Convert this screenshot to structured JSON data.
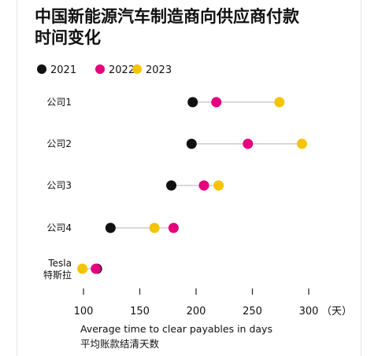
{
  "title": [
    "中国新能源汽车制造商向供应商付款",
    "时间变化"
  ],
  "colors": {
    "2021": "#111111",
    "2022": "#e5007d",
    "2023": "#f5c400",
    "connector": "#d9d9d9",
    "axis": "#333333"
  },
  "chart_data": {
    "type": "dot-plot",
    "title": "中国新能源汽车制造商向供应商付款时间变化",
    "legend": [
      "2021",
      "2022",
      "2023"
    ],
    "legend_placement": "top-left",
    "categories": [
      {
        "label": [
          "公司1"
        ],
        "values": {
          "2021": 197,
          "2022": 218,
          "2023": 274
        }
      },
      {
        "label": [
          "公司2"
        ],
        "values": {
          "2021": 196,
          "2022": 246,
          "2023": 294
        }
      },
      {
        "label": [
          "公司3"
        ],
        "values": {
          "2021": 178,
          "2022": 207,
          "2023": 220
        }
      },
      {
        "label": [
          "公司4"
        ],
        "values": {
          "2021": 124,
          "2022": 180,
          "2023": 163
        }
      },
      {
        "label": [
          "Tesla",
          "特斯拉"
        ],
        "values": {
          "2021": 112,
          "2022": 111,
          "2023": 99
        }
      }
    ],
    "x_ticks": [
      "100",
      "150",
      "200",
      "250",
      "300"
    ],
    "x_unit": "（天）",
    "xlim": [
      100,
      300
    ],
    "xlabel": [
      "Average time to clear payables in days",
      "平均账款结清天数"
    ],
    "grid": false
  }
}
